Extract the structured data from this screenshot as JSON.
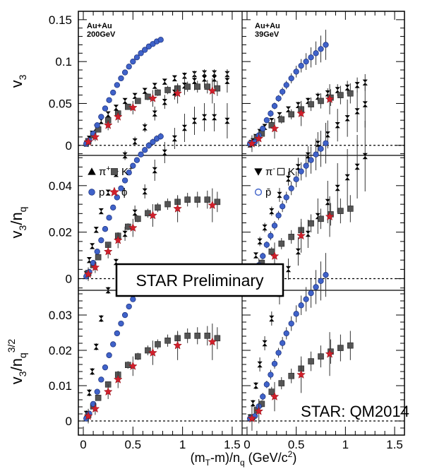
{
  "chart_data": {
    "type": "scatter",
    "xlabel": "(mT-m)/nq (GeV/c2)",
    "x_ticks": [
      "0",
      "0.5",
      "1",
      "1.5"
    ],
    "xlim": [
      -0.05,
      1.6
    ],
    "rows": [
      {
        "ylabel": "v3/nq^0",
        "ylim": [
          -0.012,
          0.16
        ],
        "ticks": [
          0,
          0.05,
          0.1,
          0.15
        ],
        "tick_labels": [
          "0",
          "0.05",
          "0.1",
          "0.15"
        ],
        "scale": 1.0
      },
      {
        "ylabel": "v3/nq",
        "ylim": [
          -0.005,
          0.053
        ],
        "ticks": [
          0,
          0.02,
          0.04
        ],
        "tick_labels": [
          "0",
          "0.02",
          "0.04"
        ],
        "scale": 0.4854
      },
      {
        "ylabel": "v3/nq^3/2",
        "ylim": [
          -0.004,
          0.037
        ],
        "ticks": [
          0,
          0.01,
          0.02,
          0.03
        ],
        "tick_labels": [
          "0",
          "0.01",
          "0.02",
          "0.03"
        ],
        "scale": 0.3447
      }
    ],
    "panels": [
      {
        "system": "Au+Au",
        "energy": "200GeV"
      },
      {
        "system": "Au+Au",
        "energy": "39GeV"
      }
    ],
    "legend_left": [
      {
        "marker": "triangle-up",
        "label": "π+"
      },
      {
        "marker": "square",
        "label": "K+"
      },
      {
        "marker": "circle",
        "label": "p"
      },
      {
        "marker": "star",
        "label": "ϕ"
      }
    ],
    "legend_right": [
      {
        "marker": "triangle-down",
        "label": "π-"
      },
      {
        "marker": "open-square",
        "label": "K-"
      },
      {
        "marker": "open-circle",
        "label": "p̄"
      }
    ],
    "series_200": [
      {
        "name": "π",
        "marker": "bowtie",
        "x": [
          0.03,
          0.06,
          0.09,
          0.13,
          0.18,
          0.25,
          0.33,
          0.42,
          0.52,
          0.62,
          0.72,
          0.82,
          0.92,
          1.02,
          1.12,
          1.22,
          1.32,
          1.45
        ],
        "y": [
          0.002,
          0.008,
          0.014,
          0.021,
          0.029,
          0.037,
          0.045,
          0.053,
          0.059,
          0.065,
          0.071,
          0.076,
          0.08,
          0.083,
          0.085,
          0.086,
          0.086,
          0.085
        ],
        "err": [
          0.001,
          0.001,
          0.001,
          0.001,
          0.001,
          0.001,
          0.001,
          0.002,
          0.002,
          0.002,
          0.003,
          0.003,
          0.003,
          0.004,
          0.004,
          0.004,
          0.004,
          0.005
        ]
      },
      {
        "name": "K",
        "marker": "square",
        "x": [
          0.05,
          0.1,
          0.15,
          0.25,
          0.35,
          0.45,
          0.55,
          0.65,
          0.75,
          0.85,
          0.95,
          1.05,
          1.15,
          1.25,
          1.35
        ],
        "y": [
          0.005,
          0.012,
          0.019,
          0.03,
          0.038,
          0.046,
          0.053,
          0.058,
          0.063,
          0.066,
          0.068,
          0.07,
          0.07,
          0.07,
          0.068
        ],
        "err": [
          0.001,
          0.002,
          0.002,
          0.002,
          0.003,
          0.003,
          0.003,
          0.004,
          0.004,
          0.005,
          0.005,
          0.006,
          0.007,
          0.008,
          0.009
        ]
      },
      {
        "name": "p",
        "marker": "circle",
        "x": [
          0.03,
          0.06,
          0.1,
          0.14,
          0.18,
          0.22,
          0.26,
          0.3,
          0.34,
          0.38,
          0.42,
          0.46,
          0.5,
          0.54,
          0.58,
          0.62,
          0.66,
          0.7,
          0.74,
          0.78
        ],
        "y": [
          0.002,
          0.006,
          0.014,
          0.024,
          0.034,
          0.044,
          0.054,
          0.063,
          0.072,
          0.08,
          0.087,
          0.094,
          0.1,
          0.105,
          0.11,
          0.114,
          0.118,
          0.121,
          0.124,
          0.126
        ],
        "err": [
          0.001,
          0.001,
          0.001,
          0.001,
          0.001,
          0.001,
          0.001,
          0.001,
          0.001,
          0.001,
          0.002,
          0.002,
          0.002,
          0.002,
          0.002,
          0.002,
          0.003,
          0.003,
          0.003,
          0.003
        ]
      },
      {
        "name": "ϕ",
        "marker": "star",
        "x": [
          0.05,
          0.12,
          0.25,
          0.35,
          0.5,
          0.7,
          0.95,
          1.3
        ],
        "y": [
          0.004,
          0.01,
          0.024,
          0.034,
          0.045,
          0.056,
          0.062,
          0.065
        ],
        "err": [
          0.006,
          0.005,
          0.006,
          0.007,
          0.008,
          0.01,
          0.012,
          0.015
        ]
      }
    ],
    "series_39": [
      {
        "name": "π",
        "marker": "bowtie",
        "x": [
          0.03,
          0.06,
          0.09,
          0.13,
          0.18,
          0.25,
          0.33,
          0.42,
          0.52,
          0.62,
          0.72,
          0.82,
          0.92,
          1.02,
          1.12,
          1.2
        ],
        "y": [
          0.001,
          0.005,
          0.01,
          0.016,
          0.022,
          0.029,
          0.036,
          0.043,
          0.048,
          0.053,
          0.058,
          0.062,
          0.066,
          0.069,
          0.072,
          0.075
        ],
        "err": [
          0.001,
          0.001,
          0.001,
          0.002,
          0.002,
          0.002,
          0.003,
          0.003,
          0.004,
          0.004,
          0.005,
          0.006,
          0.007,
          0.008,
          0.009,
          0.01
        ]
      },
      {
        "name": "K",
        "marker": "square",
        "x": [
          0.05,
          0.1,
          0.15,
          0.25,
          0.35,
          0.45,
          0.55,
          0.65,
          0.75,
          0.85,
          0.95,
          1.05
        ],
        "y": [
          0.003,
          0.009,
          0.014,
          0.024,
          0.031,
          0.037,
          0.043,
          0.049,
          0.053,
          0.057,
          0.06,
          0.062
        ],
        "err": [
          0.002,
          0.003,
          0.003,
          0.004,
          0.005,
          0.006,
          0.007,
          0.008,
          0.009,
          0.01,
          0.011,
          0.012
        ]
      },
      {
        "name": "p",
        "marker": "circle",
        "x": [
          0.03,
          0.08,
          0.12,
          0.16,
          0.2,
          0.24,
          0.28,
          0.32,
          0.36,
          0.4,
          0.45,
          0.5,
          0.55,
          0.6,
          0.65,
          0.7,
          0.75,
          0.8
        ],
        "y": [
          0.002,
          0.004,
          0.012,
          0.02,
          0.03,
          0.038,
          0.047,
          0.056,
          0.064,
          0.072,
          0.08,
          0.088,
          0.095,
          0.1,
          0.105,
          0.11,
          0.115,
          0.12
        ],
        "err": [
          0.003,
          0.003,
          0.003,
          0.003,
          0.003,
          0.004,
          0.004,
          0.004,
          0.005,
          0.005,
          0.006,
          0.007,
          0.008,
          0.01,
          0.012,
          0.014,
          0.016,
          0.018
        ]
      },
      {
        "name": "ϕ",
        "marker": "star",
        "x": [
          0.05,
          0.12,
          0.28,
          0.55,
          0.84
        ],
        "y": [
          0.002,
          0.008,
          0.02,
          0.038,
          0.055
        ],
        "err": [
          0.01,
          0.01,
          0.012,
          0.015,
          0.018
        ]
      }
    ],
    "banners": {
      "preliminary": "STAR Preliminary",
      "conference": "STAR: QM2014"
    }
  }
}
